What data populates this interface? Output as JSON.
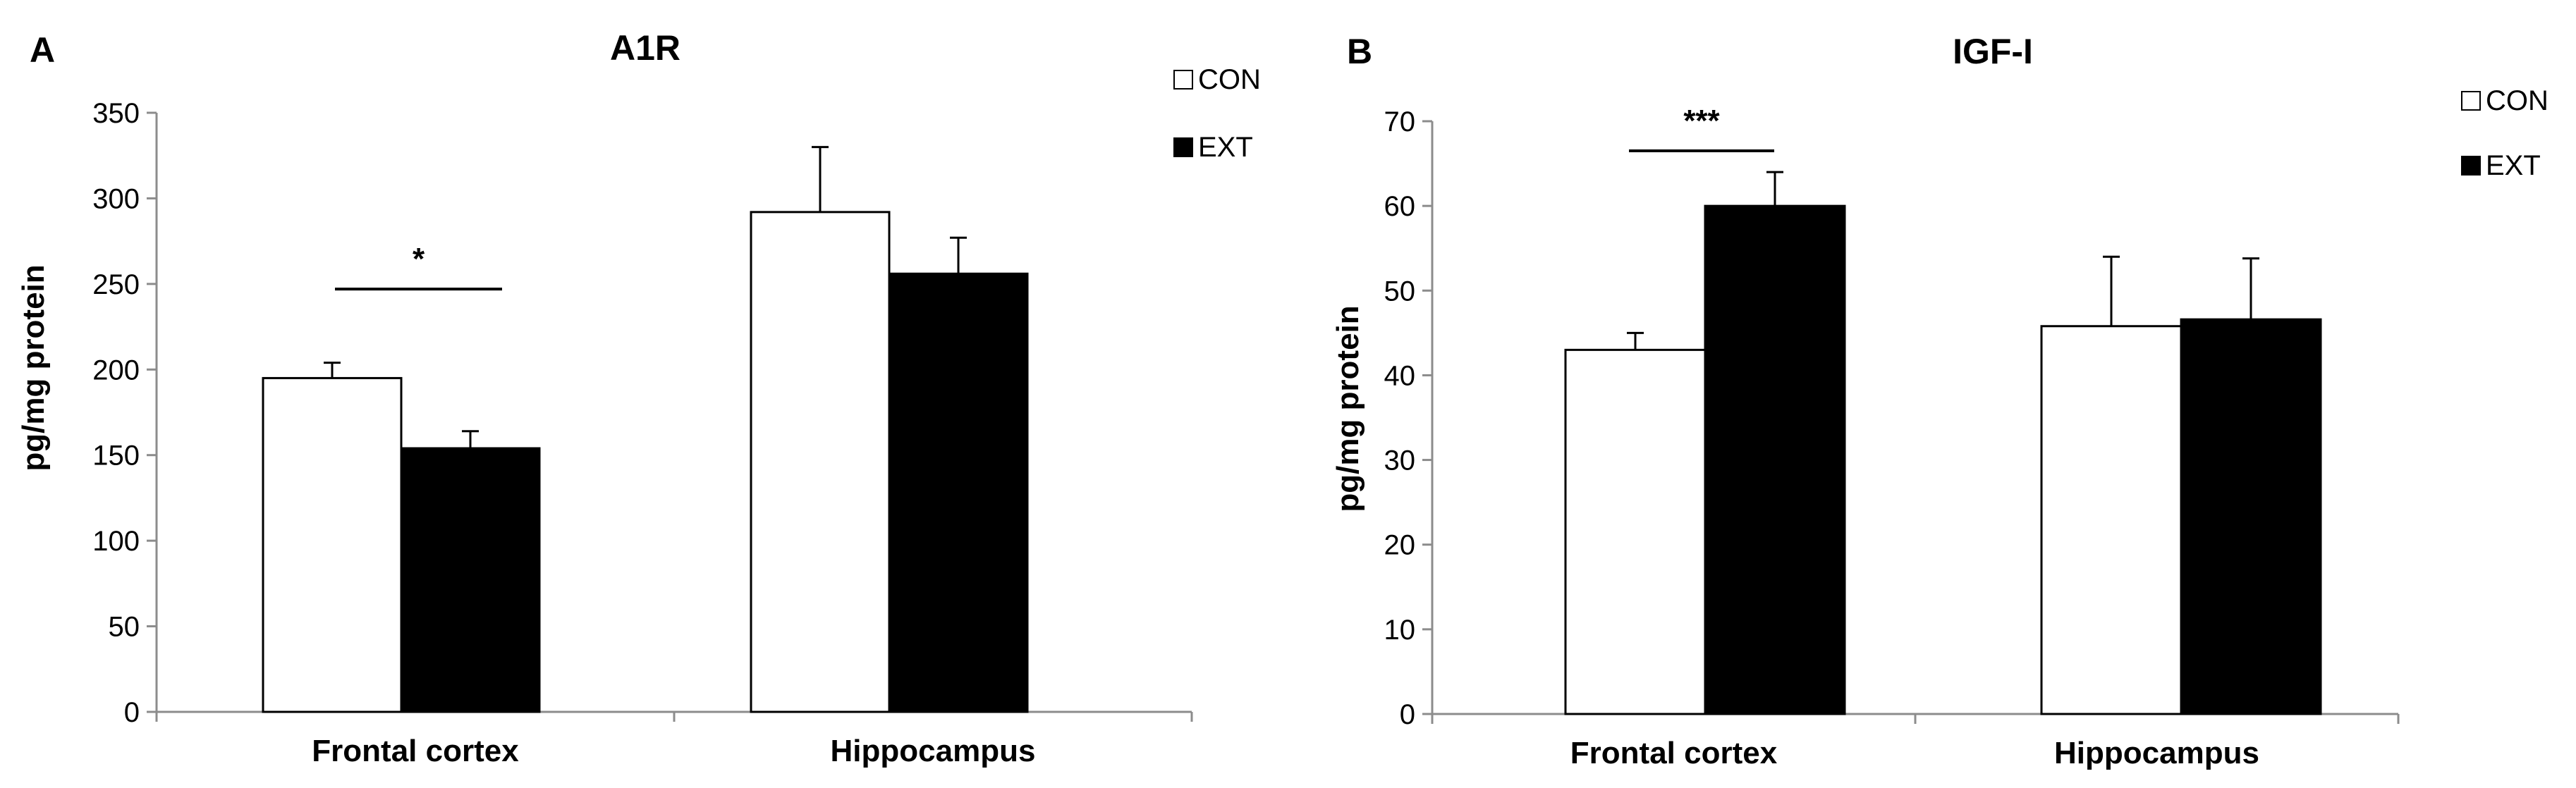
{
  "chart_data": [
    {
      "type": "bar",
      "panel_label": "A",
      "title": "A1R",
      "xlabel": "",
      "ylabel": "pg/mg protein",
      "ylim": [
        0,
        350
      ],
      "ytick_step": 50,
      "ytick_labels": [
        "0",
        "50",
        "100",
        "150",
        "200",
        "250",
        "300",
        "350"
      ],
      "categories": [
        "Frontal cortex",
        "Hippocampus"
      ],
      "series": [
        {
          "name": "CON",
          "color": "#ffffff",
          "values": [
            195,
            292
          ],
          "errors": [
            9,
            38
          ]
        },
        {
          "name": "EXT",
          "color": "#000000",
          "values": [
            154,
            256
          ],
          "errors": [
            10,
            21
          ]
        }
      ],
      "legend_position": "top-right",
      "annotations": [
        {
          "category": "Frontal cortex",
          "text": "*",
          "y": 247
        }
      ],
      "grid": false
    },
    {
      "type": "bar",
      "panel_label": "B",
      "title": "IGF-I",
      "xlabel": "",
      "ylabel": "pg/mg protein",
      "ylim": [
        0,
        70
      ],
      "ytick_step": 10,
      "ytick_labels": [
        "0",
        "10",
        "20",
        "30",
        "40",
        "50",
        "60",
        "70"
      ],
      "categories": [
        "Frontal cortex",
        "Hippocampus"
      ],
      "series": [
        {
          "name": "CON",
          "color": "#ffffff",
          "values": [
            43,
            45.8
          ],
          "errors": [
            2,
            8.2
          ]
        },
        {
          "name": "EXT",
          "color": "#000000",
          "values": [
            60,
            46.6
          ],
          "errors": [
            4,
            7.2
          ]
        }
      ],
      "legend_position": "top-right",
      "annotations": [
        {
          "category": "Frontal cortex",
          "text": "***",
          "y": 66.5
        }
      ],
      "grid": false
    }
  ]
}
